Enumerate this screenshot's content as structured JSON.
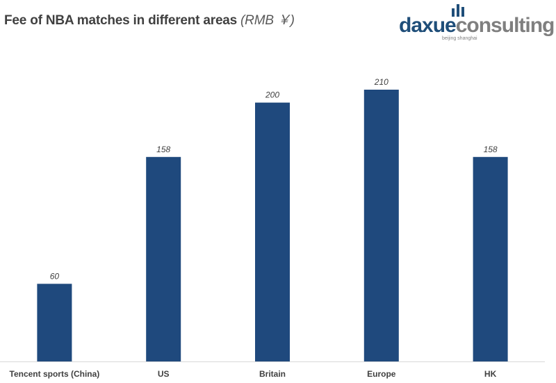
{
  "logo": {
    "word_part1": "daxue",
    "word_part2": "consulting",
    "tagline": "beijing shanghai"
  },
  "colors": {
    "bar": "#1f497d",
    "text": "#404040",
    "axis": "#d9d9d9"
  },
  "chart_data": {
    "type": "bar",
    "title": "Fee of NBA matches in different areas",
    "subtitle": "(RMB ￥)",
    "categories": [
      "Tencent sports (China)",
      "US",
      "Britain",
      "Europe",
      "HK"
    ],
    "values": [
      60,
      158,
      200,
      210,
      158
    ],
    "ylim": [
      0,
      210
    ],
    "grid": false,
    "legend": "none"
  }
}
